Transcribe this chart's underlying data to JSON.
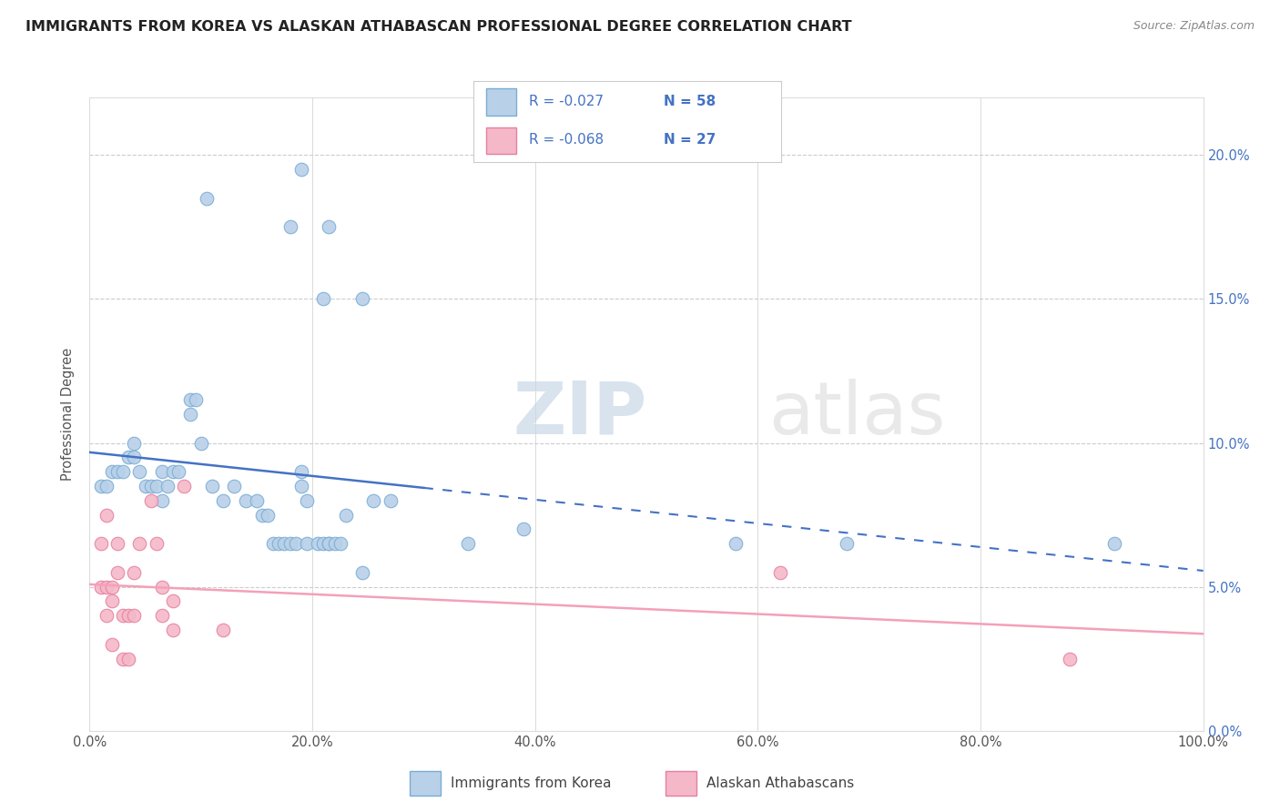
{
  "title": "IMMIGRANTS FROM KOREA VS ALASKAN ATHABASCAN PROFESSIONAL DEGREE CORRELATION CHART",
  "source": "Source: ZipAtlas.com",
  "ylabel": "Professional Degree",
  "watermark": "ZIPatlas",
  "legend_blue_r": "-0.027",
  "legend_blue_n": "58",
  "legend_pink_r": "-0.068",
  "legend_pink_n": "27",
  "legend_blue_label": "Immigrants from Korea",
  "legend_pink_label": "Alaskan Athabascans",
  "xlim": [
    0.0,
    1.0
  ],
  "ylim": [
    0.0,
    0.22
  ],
  "xticks": [
    0.0,
    0.2,
    0.4,
    0.6,
    0.8,
    1.0
  ],
  "xtick_labels": [
    "0.0%",
    "20.0%",
    "40.0%",
    "60.0%",
    "80.0%",
    "100.0%"
  ],
  "ytick_vals": [
    0.0,
    0.05,
    0.1,
    0.15,
    0.2
  ],
  "ytick_labels_right": [
    "0.0%",
    "5.0%",
    "10.0%",
    "15.0%",
    "20.0%"
  ],
  "blue_fill": "#b8d0e8",
  "blue_edge": "#7aadd4",
  "blue_line_color": "#4472c4",
  "pink_fill": "#f4b8c8",
  "pink_edge": "#e87fa0",
  "pink_line_color": "#f4a0b8",
  "blue_r_color": "#4472c4",
  "blue_n_color": "#4472c4",
  "pink_r_color": "#4472c4",
  "pink_n_color": "#4472c4",
  "right_axis_color": "#4472c4",
  "blue_scatter_x": [
    0.105,
    0.18,
    0.19,
    0.215,
    0.21,
    0.245,
    0.01,
    0.015,
    0.02,
    0.025,
    0.03,
    0.035,
    0.04,
    0.04,
    0.045,
    0.05,
    0.055,
    0.06,
    0.065,
    0.065,
    0.07,
    0.075,
    0.08,
    0.09,
    0.09,
    0.095,
    0.1,
    0.11,
    0.12,
    0.13,
    0.14,
    0.15,
    0.155,
    0.16,
    0.165,
    0.17,
    0.175,
    0.18,
    0.185,
    0.19,
    0.19,
    0.195,
    0.195,
    0.205,
    0.21,
    0.215,
    0.215,
    0.22,
    0.225,
    0.23,
    0.245,
    0.255,
    0.27,
    0.34,
    0.39,
    0.58,
    0.68,
    0.92
  ],
  "blue_scatter_y": [
    0.185,
    0.175,
    0.195,
    0.175,
    0.15,
    0.15,
    0.085,
    0.085,
    0.09,
    0.09,
    0.09,
    0.095,
    0.095,
    0.1,
    0.09,
    0.085,
    0.085,
    0.085,
    0.09,
    0.08,
    0.085,
    0.09,
    0.09,
    0.11,
    0.115,
    0.115,
    0.1,
    0.085,
    0.08,
    0.085,
    0.08,
    0.08,
    0.075,
    0.075,
    0.065,
    0.065,
    0.065,
    0.065,
    0.065,
    0.085,
    0.09,
    0.08,
    0.065,
    0.065,
    0.065,
    0.065,
    0.065,
    0.065,
    0.065,
    0.075,
    0.055,
    0.08,
    0.08,
    0.065,
    0.07,
    0.065,
    0.065,
    0.065
  ],
  "pink_scatter_x": [
    0.01,
    0.01,
    0.015,
    0.015,
    0.015,
    0.02,
    0.02,
    0.02,
    0.025,
    0.025,
    0.03,
    0.03,
    0.035,
    0.035,
    0.04,
    0.04,
    0.045,
    0.055,
    0.06,
    0.065,
    0.065,
    0.075,
    0.075,
    0.085,
    0.12,
    0.62,
    0.88
  ],
  "pink_scatter_y": [
    0.065,
    0.05,
    0.075,
    0.05,
    0.04,
    0.05,
    0.045,
    0.03,
    0.065,
    0.055,
    0.04,
    0.025,
    0.04,
    0.025,
    0.04,
    0.055,
    0.065,
    0.08,
    0.065,
    0.05,
    0.04,
    0.045,
    0.035,
    0.085,
    0.035,
    0.055,
    0.025
  ],
  "background_color": "#ffffff",
  "grid_color": "#cccccc"
}
